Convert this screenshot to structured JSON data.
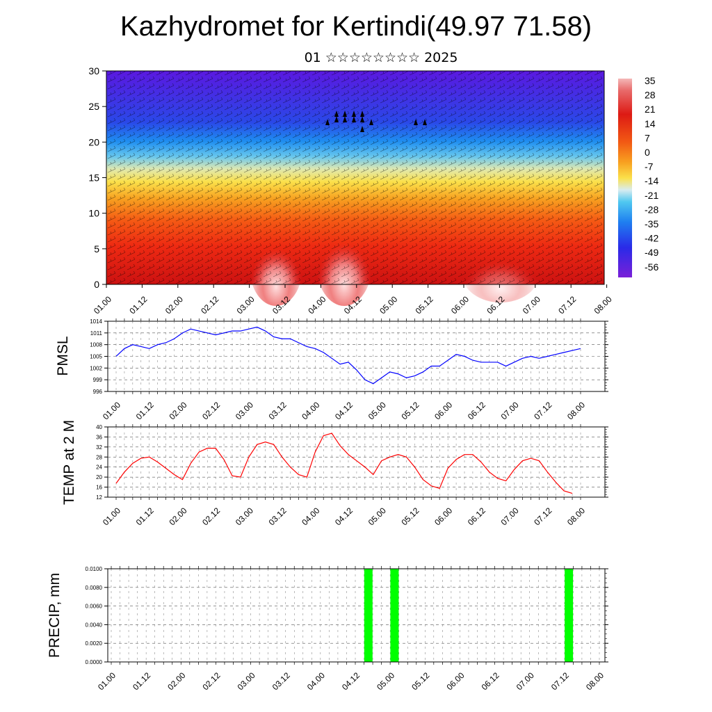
{
  "title": "Kazhydromet for Kertindi(49.97 71.58)",
  "subtitle": "01 ☆☆☆☆☆☆☆☆ 2025",
  "time_labels": [
    "01.00",
    "01.12",
    "02.00",
    "02.12",
    "03.00",
    "03.12",
    "04.00",
    "04.12",
    "05.00",
    "05.12",
    "06.00",
    "06.12",
    "07.00",
    "07.12",
    "08.00"
  ],
  "chart_data": [
    {
      "id": "cross_section",
      "type": "heatmap",
      "ylim": [
        0,
        30
      ],
      "yticks": [
        0,
        5,
        10,
        15,
        20,
        25,
        30
      ],
      "colorbar": {
        "labels": [
          "35",
          "28",
          "21",
          "14",
          "7",
          "0",
          "-7",
          "-14",
          "-21",
          "-28",
          "-35",
          "-42",
          "-49",
          "-56"
        ]
      }
    },
    {
      "id": "pmsl",
      "type": "line",
      "ylabel": "PMSL",
      "ylim": [
        996,
        1014
      ],
      "yticks": [
        "1014",
        "1011",
        "1008",
        "1005",
        "1002",
        "999",
        "996"
      ],
      "color": "#0000ff",
      "values": [
        1005,
        1007,
        1008,
        1007.5,
        1007,
        1008,
        1008.5,
        1009.5,
        1011,
        1012,
        1011.5,
        1011,
        1010.5,
        1011,
        1011.5,
        1011.5,
        1012,
        1012.5,
        1011.5,
        1010,
        1009.5,
        1009.5,
        1008.5,
        1007.5,
        1007,
        1006,
        1004.5,
        1003,
        1003.5,
        1001.5,
        999,
        998,
        999.5,
        1001,
        1000.5,
        999.5,
        1000,
        1001,
        1002.5,
        1002.5,
        1004,
        1005.5,
        1005,
        1004,
        1003.5,
        1003.5,
        1003.5,
        1002.5,
        1003.5,
        1004.5,
        1005,
        1004.5,
        1005,
        1005.5,
        1006,
        1006.5,
        1007
      ]
    },
    {
      "id": "temp2m",
      "type": "line",
      "ylabel": "TEMP at 2 M",
      "ylim": [
        12,
        40
      ],
      "yticks": [
        "40",
        "36",
        "32",
        "28",
        "24",
        "20",
        "16",
        "12"
      ],
      "color": "#ff0000",
      "values": [
        17.5,
        22,
        25.5,
        27.5,
        28,
        26,
        23.5,
        21,
        19,
        25.5,
        30,
        31.5,
        31.5,
        27,
        20.5,
        20,
        28,
        33,
        34,
        33,
        28,
        24,
        21,
        20,
        30,
        36.5,
        37.5,
        32.5,
        29,
        26.5,
        24,
        21,
        26.5,
        28,
        29,
        28,
        24,
        19,
        16.5,
        15.5,
        23.5,
        27,
        29,
        29,
        26,
        22,
        19.5,
        18.5,
        23,
        26.5,
        27.5,
        26.5,
        22,
        18,
        14.5,
        13.5
      ]
    },
    {
      "id": "precip",
      "type": "bar",
      "ylabel": "PRECIP, mm",
      "ylim": [
        0,
        0.01
      ],
      "yticks": [
        "0.0100",
        "0.0080",
        "0.0060",
        "0.0040",
        "0.0020",
        "0.0000"
      ],
      "color": "#00ff00",
      "x": [
        29.5,
        32.5,
        52.5
      ],
      "values": [
        0.01,
        0.01,
        0.01
      ]
    }
  ]
}
